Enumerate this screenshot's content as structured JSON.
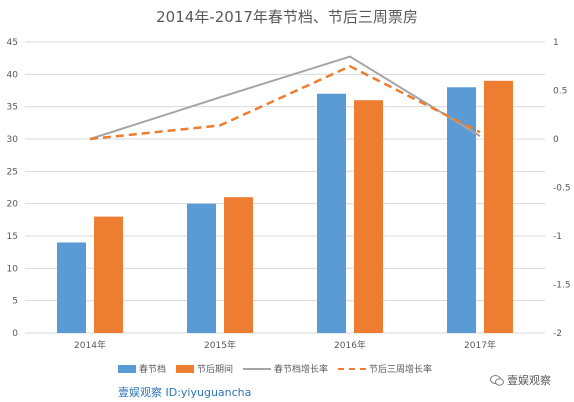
{
  "chart_data": {
    "type": "bar",
    "title": "2014年-2017年春节档、节后三周票房",
    "categories": [
      "2014年",
      "2015年",
      "2016年",
      "2017年"
    ],
    "series": [
      {
        "name": "春节档",
        "kind": "bar",
        "axis": "left",
        "color": "#5b9bd5",
        "values": [
          14,
          20,
          37,
          38
        ]
      },
      {
        "name": "节后期间",
        "kind": "bar",
        "axis": "left",
        "color": "#ed7d31",
        "values": [
          18,
          21,
          36,
          39
        ]
      },
      {
        "name": "春节档增长率",
        "kind": "line",
        "axis": "right",
        "color": "#a5a5a5",
        "values": [
          0.0,
          0.43,
          0.85,
          0.03
        ]
      },
      {
        "name": "节后三周增长率",
        "kind": "dashed-line",
        "axis": "right",
        "color": "#ed7d31",
        "values": [
          0.0,
          0.14,
          0.75,
          0.07
        ]
      }
    ],
    "ylim_left": [
      0,
      45
    ],
    "yticks_left": [
      "0",
      "5",
      "10",
      "15",
      "20",
      "25",
      "30",
      "35",
      "40",
      "45"
    ],
    "ylim_right": [
      -2,
      1
    ],
    "yticks_right": [
      "-2",
      "-1.5",
      "-1",
      "-0.5",
      "0",
      "0.5",
      "1"
    ],
    "grid": true,
    "legend_position": "bottom"
  },
  "watermark": {
    "left_text": "壹娱观察 ID:yiyuguancha",
    "right_text": "壹娱观察"
  }
}
